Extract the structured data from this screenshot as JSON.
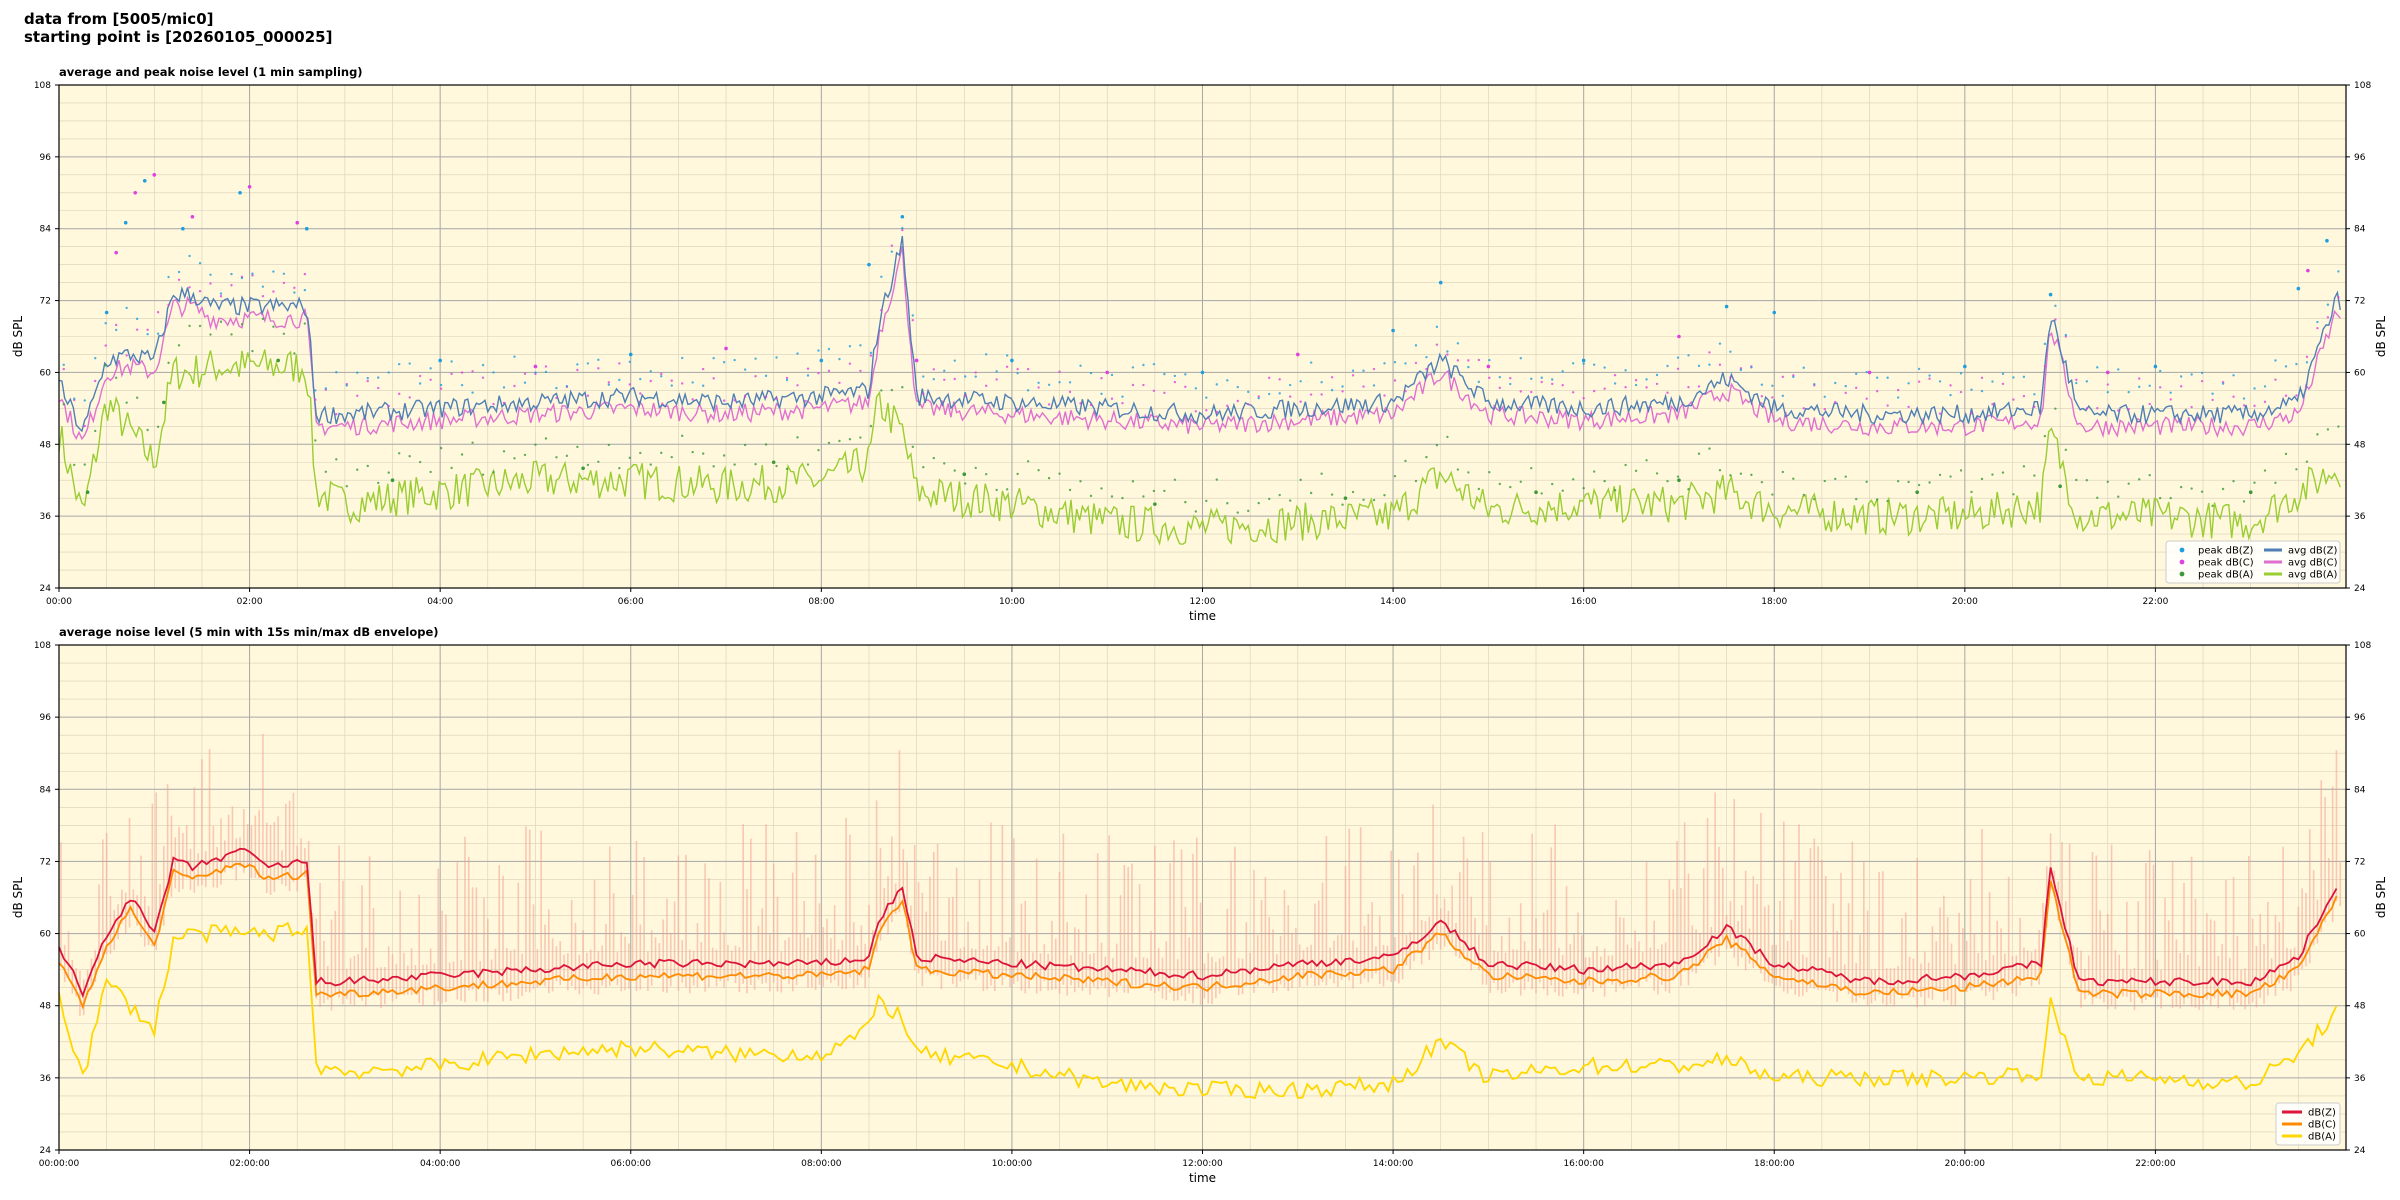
{
  "header": {
    "line1": "data from [5005/mic0]",
    "line2": "starting point is [20260105_000025]"
  },
  "colors": {
    "plot_bg": "#fff8dc",
    "peak_z": "#1f9ede",
    "peak_c": "#e040e0",
    "peak_a": "#3a9a3a",
    "avg_z": "#4f7fb5",
    "avg_c": "#e070d0",
    "avg_a": "#9acd32",
    "env_z": "#dc143c",
    "env_c": "#ff8c00",
    "env_a": "#ffd700",
    "envelope": "#f4a090"
  },
  "chart_data": [
    {
      "type": "line",
      "title": "average and peak noise level (1 min sampling)",
      "xlabel": "time",
      "ylabel": "dB SPL",
      "ylabel_right": "dB SPL",
      "ylim": [
        24,
        108
      ],
      "yticks": [
        "24",
        "36",
        "48",
        "60",
        "72",
        "84",
        "96",
        "108"
      ],
      "xlim_hours": [
        0,
        24
      ],
      "xticks": [
        "00:00",
        "02:00",
        "04:00",
        "06:00",
        "08:00",
        "10:00",
        "12:00",
        "14:00",
        "16:00",
        "18:00",
        "20:00",
        "22:00"
      ],
      "grid": true,
      "legend_position": "bottom-right",
      "legend": [
        {
          "label": "peak dB(Z)",
          "kind": "dot",
          "color": "#1f9ede"
        },
        {
          "label": "peak dB(C)",
          "kind": "dot",
          "color": "#e040e0"
        },
        {
          "label": "peak dB(A)",
          "kind": "dot",
          "color": "#3a9a3a"
        },
        {
          "label": "avg dB(Z)",
          "kind": "line",
          "color": "#4f7fb5"
        },
        {
          "label": "avg dB(C)",
          "kind": "line",
          "color": "#e070d0"
        },
        {
          "label": "avg dB(A)",
          "kind": "line",
          "color": "#9acd32"
        }
      ],
      "series": [
        {
          "name": "avg dB(Z)",
          "x": [
            0,
            0.25,
            0.5,
            0.75,
            1.0,
            1.2,
            1.4,
            1.6,
            1.9,
            2.2,
            2.6,
            2.7,
            3,
            4,
            5,
            6,
            7,
            8,
            8.5,
            8.6,
            8.85,
            9,
            10,
            11,
            12,
            13,
            14,
            14.5,
            15,
            16,
            17,
            17.5,
            18,
            19,
            20,
            20.8,
            20.9,
            21.2,
            22,
            23,
            23.5,
            23.9
          ],
          "values": [
            58,
            50,
            62,
            63,
            62,
            73,
            73,
            71,
            71,
            71,
            71,
            53,
            53,
            54,
            55,
            56,
            55,
            56,
            57,
            68,
            82,
            56,
            55,
            54,
            53,
            54,
            55,
            62,
            55,
            54,
            55,
            59,
            54,
            53,
            53,
            54,
            70,
            53,
            53,
            53,
            55,
            72
          ]
        },
        {
          "name": "avg dB(C)",
          "x": [
            0,
            0.25,
            0.5,
            0.75,
            1.0,
            1.2,
            1.4,
            1.6,
            1.9,
            2.2,
            2.6,
            2.7,
            3,
            4,
            5,
            6,
            7,
            8,
            8.5,
            8.6,
            8.85,
            9,
            10,
            11,
            12,
            13,
            14,
            14.5,
            15,
            16,
            17,
            17.5,
            18,
            19,
            20,
            20.8,
            20.9,
            21.2,
            22,
            23,
            23.5,
            23.9
          ],
          "values": [
            56,
            48,
            60,
            61,
            60,
            71,
            71,
            69,
            69,
            69,
            69,
            51,
            51,
            52,
            53,
            54,
            53,
            54,
            55,
            66,
            80,
            54,
            53,
            52,
            51,
            52,
            53,
            60,
            53,
            52,
            53,
            57,
            52,
            51,
            51,
            52,
            68,
            51,
            51,
            51,
            53,
            70
          ]
        },
        {
          "name": "avg dB(A)",
          "x": [
            0,
            0.25,
            0.5,
            0.75,
            1.0,
            1.2,
            1.4,
            1.6,
            1.9,
            2.2,
            2.6,
            2.7,
            3,
            4,
            5,
            6,
            7,
            8,
            8.5,
            8.6,
            8.85,
            9,
            10,
            11,
            12,
            13,
            14,
            14.5,
            15,
            16,
            17,
            17.5,
            18,
            19,
            20,
            20.8,
            20.9,
            21.2,
            22,
            23,
            23.5,
            23.9
          ],
          "values": [
            50,
            36,
            55,
            50,
            45,
            60,
            60,
            61,
            61,
            61,
            61,
            40,
            38,
            40,
            42,
            42,
            41,
            42,
            45,
            55,
            50,
            40,
            38,
            35,
            34,
            35,
            36,
            43,
            37,
            38,
            38,
            40,
            37,
            36,
            36,
            38,
            50,
            36,
            36,
            35,
            40,
            44
          ]
        },
        {
          "name": "peak dB(Z)",
          "kind": "scatter",
          "x": [
            0.5,
            0.7,
            0.9,
            1.3,
            1.9,
            2.6,
            4,
            6,
            8,
            8.5,
            8.85,
            10,
            12,
            14,
            14.5,
            16,
            17.5,
            18,
            20,
            20.9,
            22,
            23.5,
            23.8
          ],
          "values": [
            70,
            85,
            92,
            84,
            90,
            84,
            62,
            63,
            62,
            78,
            86,
            62,
            60,
            67,
            75,
            62,
            71,
            70,
            61,
            73,
            61,
            74,
            82
          ]
        },
        {
          "name": "peak dB(C)",
          "kind": "scatter",
          "x": [
            0.6,
            0.8,
            1.0,
            1.4,
            2.0,
            2.5,
            5,
            7,
            9,
            11,
            13,
            15,
            17,
            19,
            21.5,
            23.6
          ],
          "values": [
            80,
            90,
            93,
            86,
            91,
            85,
            61,
            64,
            62,
            60,
            63,
            61,
            66,
            60,
            60,
            77
          ]
        },
        {
          "name": "peak dB(A)",
          "kind": "scatter",
          "x": [
            0.3,
            1.1,
            2.3,
            3.5,
            5.5,
            7.5,
            9.5,
            11.5,
            13.5,
            15.5,
            17,
            19.5,
            21,
            23
          ],
          "values": [
            40,
            55,
            62,
            42,
            44,
            45,
            43,
            38,
            39,
            40,
            42,
            40,
            41,
            40
          ]
        }
      ]
    },
    {
      "type": "line",
      "title": "average noise level (5 min with 15s min/max dB envelope)",
      "xlabel": "time",
      "ylabel": "dB SPL",
      "ylabel_right": "dB SPL",
      "ylim": [
        24,
        108
      ],
      "yticks": [
        "24",
        "36",
        "48",
        "60",
        "72",
        "84",
        "96",
        "108"
      ],
      "xlim_hours": [
        0,
        24
      ],
      "xticks": [
        "00:00:00",
        "02:00:00",
        "04:00:00",
        "06:00:00",
        "08:00:00",
        "10:00:00",
        "12:00:00",
        "14:00:00",
        "16:00:00",
        "18:00:00",
        "20:00:00",
        "22:00:00"
      ],
      "grid": true,
      "legend_position": "bottom-right",
      "legend": [
        {
          "label": "dB(Z)",
          "kind": "line",
          "color": "#dc143c"
        },
        {
          "label": "dB(C)",
          "kind": "line",
          "color": "#ff8c00"
        },
        {
          "label": "dB(A)",
          "kind": "line",
          "color": "#ffd700"
        }
      ],
      "series": [
        {
          "name": "dB(Z)",
          "x": [
            0,
            0.25,
            0.5,
            0.75,
            1.0,
            1.2,
            1.4,
            1.6,
            1.9,
            2.2,
            2.6,
            2.7,
            3,
            4,
            5,
            6,
            7,
            8,
            8.5,
            8.6,
            8.85,
            9,
            10,
            11,
            12,
            13,
            14,
            14.5,
            15,
            16,
            17,
            17.5,
            18,
            19,
            20,
            20.8,
            20.9,
            21.2,
            22,
            23,
            23.5,
            23.9
          ],
          "values": [
            58,
            50,
            60,
            66,
            60,
            72,
            71,
            72,
            74,
            71,
            72,
            52,
            52,
            53,
            54,
            55,
            55,
            55,
            56,
            62,
            68,
            56,
            55,
            54,
            53,
            55,
            56,
            62,
            55,
            54,
            55,
            61,
            55,
            52,
            53,
            55,
            71,
            52,
            52,
            52,
            56,
            68
          ]
        },
        {
          "name": "dB(C)",
          "x": [
            0,
            0.25,
            0.5,
            0.75,
            1.0,
            1.2,
            1.4,
            1.6,
            1.9,
            2.2,
            2.6,
            2.7,
            3,
            4,
            5,
            6,
            7,
            8,
            8.5,
            8.6,
            8.85,
            9,
            10,
            11,
            12,
            13,
            14,
            14.5,
            15,
            16,
            17,
            17.5,
            18,
            19,
            20,
            20.8,
            20.9,
            21.2,
            22,
            23,
            23.5,
            23.9
          ],
          "values": [
            55,
            48,
            58,
            64,
            58,
            70,
            69,
            70,
            72,
            69,
            70,
            50,
            50,
            51,
            52,
            53,
            53,
            53,
            54,
            60,
            66,
            54,
            53,
            52,
            51,
            53,
            54,
            60,
            53,
            52,
            53,
            59,
            53,
            50,
            51,
            53,
            69,
            50,
            50,
            50,
            54,
            66
          ]
        },
        {
          "name": "dB(A)",
          "x": [
            0,
            0.25,
            0.5,
            0.75,
            1.0,
            1.2,
            1.4,
            1.6,
            1.9,
            2.2,
            2.6,
            2.7,
            3,
            4,
            5,
            6,
            7,
            8,
            8.5,
            8.6,
            8.85,
            9,
            10,
            11,
            12,
            13,
            14,
            14.5,
            15,
            16,
            17,
            17.5,
            18,
            19,
            20,
            20.8,
            20.9,
            21.2,
            22,
            23,
            23.5,
            23.9
          ],
          "values": [
            50,
            36,
            52,
            48,
            44,
            59,
            60,
            60,
            60,
            60,
            61,
            38,
            37,
            38,
            40,
            41,
            40,
            40,
            44,
            49,
            46,
            40,
            38,
            35,
            34,
            34,
            35,
            42,
            36,
            38,
            38,
            39,
            36,
            36,
            36,
            37,
            48,
            36,
            36,
            35,
            40,
            47
          ]
        }
      ]
    }
  ]
}
